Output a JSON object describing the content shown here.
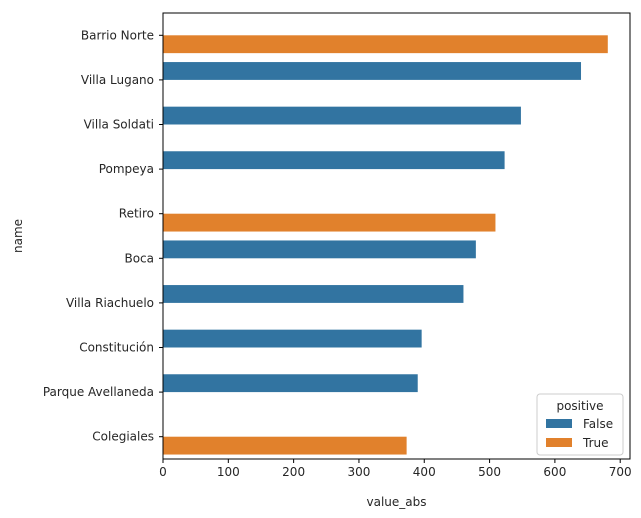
{
  "chart_data": {
    "type": "bar",
    "orientation": "horizontal",
    "categories": [
      "Barrio Norte",
      "Villa Lugano",
      "Villa Soldati",
      "Pompeya",
      "Retiro",
      "Boca",
      "Villa Riachuelo",
      "Constitución",
      "Parque Avellaneda",
      "Colegiales"
    ],
    "series": [
      {
        "name": "False",
        "color": "#3274a1",
        "values": [
          null,
          640,
          548,
          523,
          null,
          479,
          460,
          396,
          390,
          null
        ]
      },
      {
        "name": "True",
        "color": "#e1812c",
        "values": [
          681,
          null,
          null,
          null,
          509,
          null,
          null,
          null,
          null,
          373
        ]
      }
    ],
    "xlabel": "value_abs",
    "ylabel": "name",
    "xlim": [
      0,
      715
    ],
    "xticks": [
      0,
      100,
      200,
      300,
      400,
      500,
      600,
      700
    ],
    "grid": false,
    "legend": {
      "title": "positive",
      "placement": "lower-right",
      "entries": [
        "False",
        "True"
      ]
    }
  }
}
